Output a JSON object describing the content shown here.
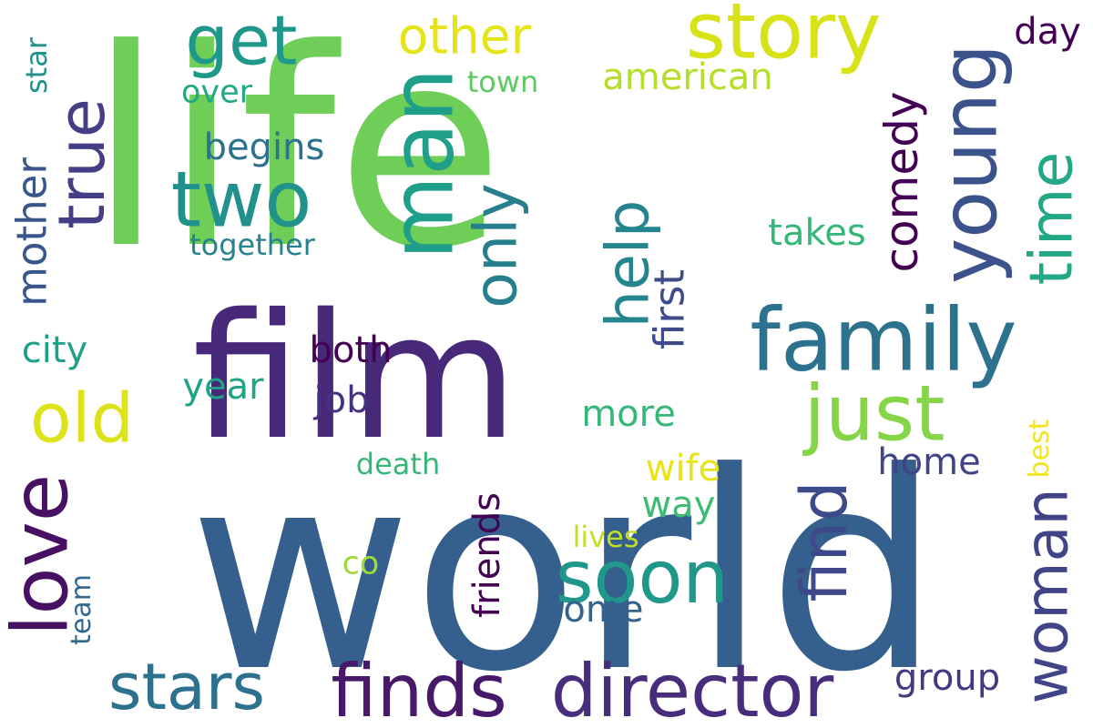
{
  "word_cloud": {
    "words": [
      {
        "text": "life",
        "color": "#6ece58"
      },
      {
        "text": "world",
        "color": "#355f8d"
      },
      {
        "text": "film",
        "color": "#482878"
      },
      {
        "text": "family",
        "color": "#2c728e"
      },
      {
        "text": "director",
        "color": "#472d7b"
      },
      {
        "text": "finds",
        "color": "#48186a"
      },
      {
        "text": "just",
        "color": "#86d549"
      },
      {
        "text": "man",
        "color": "#1f9e89"
      },
      {
        "text": "two",
        "color": "#21918c"
      },
      {
        "text": "story",
        "color": "#d8e219"
      },
      {
        "text": "young",
        "color": "#3b528b"
      },
      {
        "text": "soon",
        "color": "#1f988b"
      },
      {
        "text": "stars",
        "color": "#2c728e"
      },
      {
        "text": "love",
        "color": "#471063"
      },
      {
        "text": "time",
        "color": "#22a884"
      },
      {
        "text": "woman",
        "color": "#414487"
      },
      {
        "text": "get",
        "color": "#1f988b"
      },
      {
        "text": "true",
        "color": "#433e85"
      },
      {
        "text": "old",
        "color": "#dde318"
      },
      {
        "text": "find",
        "color": "#3e4989"
      },
      {
        "text": "only",
        "color": "#277f8e"
      },
      {
        "text": "help",
        "color": "#25858e"
      },
      {
        "text": "comedy",
        "color": "#440154"
      },
      {
        "text": "other",
        "color": "#e5e419"
      },
      {
        "text": "first",
        "color": "#3e4a89"
      },
      {
        "text": "mother",
        "color": "#39568c"
      },
      {
        "text": "day",
        "color": "#440154"
      },
      {
        "text": "american",
        "color": "#b5de2b"
      },
      {
        "text": "friends",
        "color": "#440154"
      },
      {
        "text": "begins",
        "color": "#2c728e"
      },
      {
        "text": "group",
        "color": "#453781"
      },
      {
        "text": "both",
        "color": "#440154"
      },
      {
        "text": "year",
        "color": "#20a486"
      },
      {
        "text": "wife",
        "color": "#e7e419"
      },
      {
        "text": "job",
        "color": "#46327e"
      },
      {
        "text": "home",
        "color": "#414487"
      },
      {
        "text": "way",
        "color": "#3fbc73"
      },
      {
        "text": "some",
        "color": "#33638d"
      },
      {
        "text": "takes",
        "color": "#35b779"
      },
      {
        "text": "more",
        "color": "#35b779"
      },
      {
        "text": "city",
        "color": "#1fa088"
      },
      {
        "text": "over",
        "color": "#22a884"
      },
      {
        "text": "town",
        "color": "#5ec962"
      },
      {
        "text": "star",
        "color": "#21918c"
      },
      {
        "text": "together",
        "color": "#26828e"
      },
      {
        "text": "death",
        "color": "#35b779"
      },
      {
        "text": "co",
        "color": "#a0da39"
      },
      {
        "text": "lives",
        "color": "#c2df23"
      },
      {
        "text": "team",
        "color": "#31688e"
      },
      {
        "text": "best",
        "color": "#f1e51d"
      }
    ]
  }
}
